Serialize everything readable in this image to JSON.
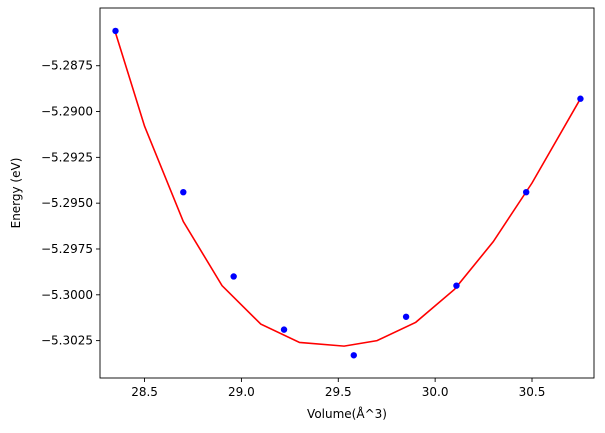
{
  "chart_data": {
    "type": "scatter",
    "title": "",
    "xlabel": "Volume(Å^3)",
    "ylabel": "Energy (eV)",
    "xlim": [
      28.27,
      30.82
    ],
    "ylim": [
      -5.30454,
      -5.28435
    ],
    "grid": false,
    "x_ticks": [
      28.5,
      29.0,
      29.5,
      30.0,
      30.5
    ],
    "x_tick_labels": [
      "28.5",
      "29.0",
      "29.5",
      "30.0",
      "30.5"
    ],
    "y_ticks": [
      -5.2875,
      -5.29,
      -5.2925,
      -5.295,
      -5.2975,
      -5.3,
      -5.3025
    ],
    "y_tick_labels": [
      "−5.2875",
      "−5.2900",
      "−5.2925",
      "−5.2950",
      "−5.2975",
      "−5.3000",
      "−5.3025"
    ],
    "series": [
      {
        "kind": "points",
        "color": "#0000ff",
        "points": [
          {
            "x": 28.35,
            "y": -5.2856
          },
          {
            "x": 28.7,
            "y": -5.2944
          },
          {
            "x": 28.96,
            "y": -5.299
          },
          {
            "x": 29.22,
            "y": -5.3019
          },
          {
            "x": 29.58,
            "y": -5.3033
          },
          {
            "x": 29.85,
            "y": -5.3012
          },
          {
            "x": 30.11,
            "y": -5.2995
          },
          {
            "x": 30.47,
            "y": -5.2944
          },
          {
            "x": 30.75,
            "y": -5.2893
          }
        ]
      },
      {
        "kind": "fit-curve",
        "color": "#ff0000",
        "points": [
          {
            "x": 28.35,
            "y": -5.2857
          },
          {
            "x": 28.5,
            "y": -5.2908
          },
          {
            "x": 28.7,
            "y": -5.296
          },
          {
            "x": 28.9,
            "y": -5.2995
          },
          {
            "x": 29.1,
            "y": -5.3016
          },
          {
            "x": 29.3,
            "y": -5.3026
          },
          {
            "x": 29.53,
            "y": -5.3028
          },
          {
            "x": 29.7,
            "y": -5.3025
          },
          {
            "x": 29.9,
            "y": -5.3015
          },
          {
            "x": 30.1,
            "y": -5.2997
          },
          {
            "x": 30.3,
            "y": -5.2971
          },
          {
            "x": 30.5,
            "y": -5.2939
          },
          {
            "x": 30.75,
            "y": -5.2893
          }
        ]
      }
    ]
  }
}
